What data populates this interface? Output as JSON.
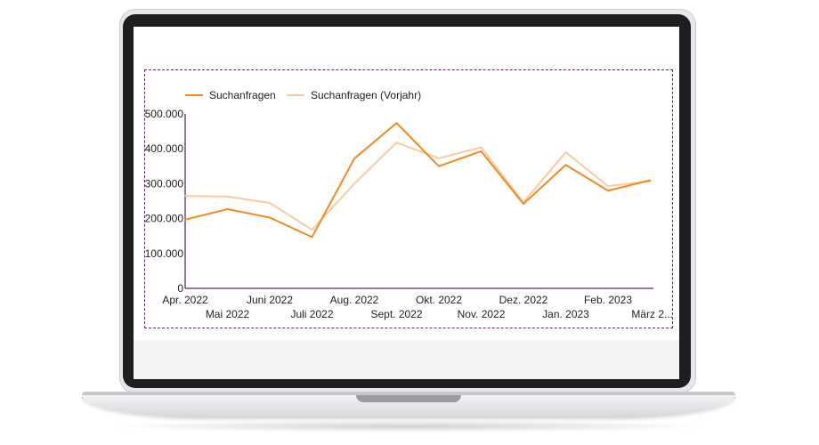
{
  "chart_data": {
    "type": "line",
    "categories": [
      "Apr. 2022",
      "Mai 2022",
      "Juni 2022",
      "Juli 2022",
      "Aug. 2022",
      "Sept. 2022",
      "Okt. 2022",
      "Nov. 2022",
      "Dez. 2022",
      "Jan. 2023",
      "Feb. 2023",
      "März 2..."
    ],
    "series": [
      {
        "name": "Suchanfragen",
        "values": [
          197000,
          227000,
          203000,
          147000,
          372000,
          474000,
          350000,
          393000,
          242000,
          354000,
          280000,
          310000
        ],
        "color": "#f08a24"
      },
      {
        "name": "Suchanfragen (Vorjahr)",
        "values": [
          265000,
          263000,
          245000,
          168000,
          300000,
          418000,
          373000,
          404000,
          247000,
          390000,
          293000,
          307000
        ],
        "color": "#f9cba0"
      }
    ],
    "y_ticks": [
      "500.000",
      "400.000",
      "300.000",
      "200.000",
      "100.000",
      "0"
    ],
    "ylim": [
      0,
      500000
    ],
    "legend_position": "top-left",
    "grid": false,
    "axis_color": "#5a2a62"
  }
}
